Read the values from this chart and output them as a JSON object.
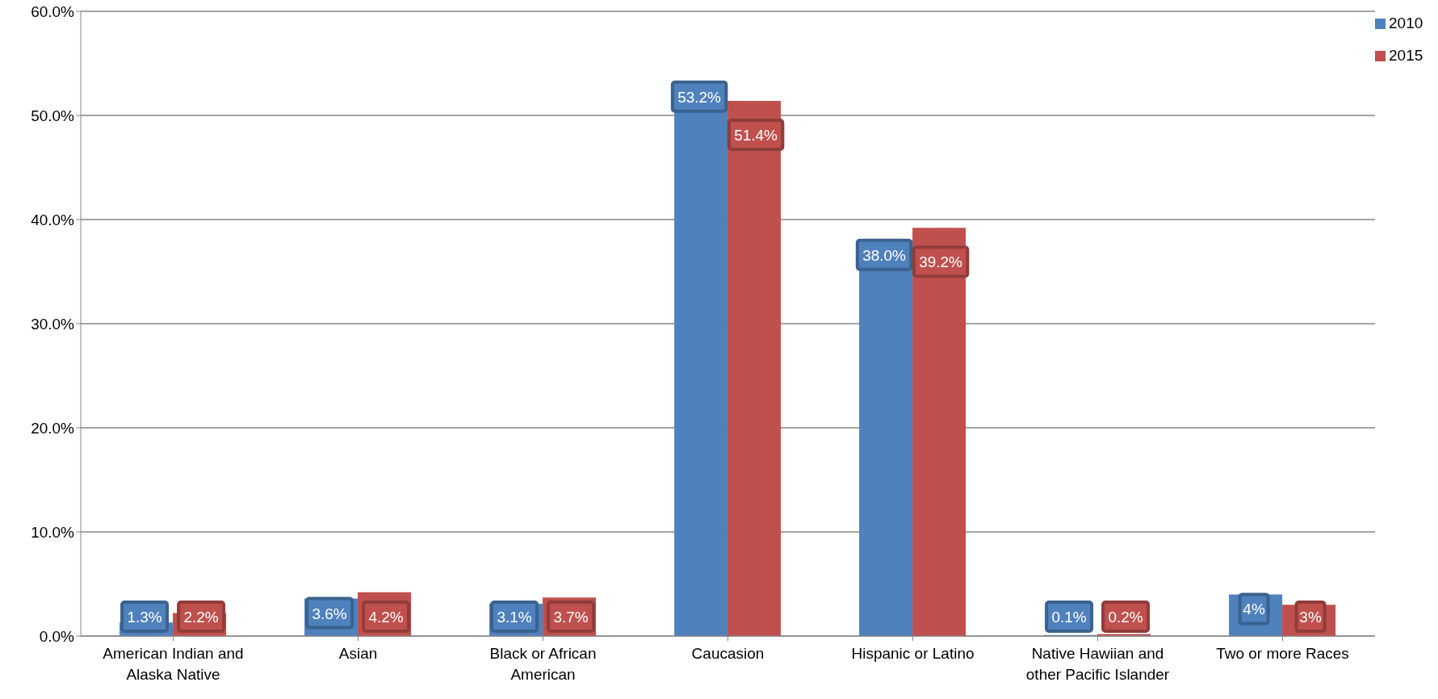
{
  "chart_data": {
    "type": "bar",
    "categories": [
      "American Indian and Alaska Native",
      "Asian",
      "Black or African American",
      "Caucasion",
      "Hispanic or Latino",
      "Native Hawiian and other Pacific Islander",
      "Two or more Races"
    ],
    "series": [
      {
        "name": "2010",
        "color": "#4f81bd",
        "values": [
          1.3,
          3.6,
          3.1,
          53.2,
          38.0,
          0.1,
          4
        ],
        "value_labels": [
          "1.3%",
          "3.6%",
          "3.1%",
          "53.2%",
          "38.0%",
          "0.1%",
          "4%"
        ]
      },
      {
        "name": "2015",
        "color": "#c0504d",
        "values": [
          2.2,
          4.2,
          3.7,
          51.4,
          39.2,
          0.2,
          3
        ],
        "value_labels": [
          "2.2%",
          "4.2%",
          "3.7%",
          "51.4%",
          "39.2%",
          "0.2%",
          "3%"
        ]
      }
    ],
    "ylim": [
      0,
      60
    ],
    "yticks": [
      {
        "value": 0,
        "label": "0.0%"
      },
      {
        "value": 10,
        "label": "10.0%"
      },
      {
        "value": 20,
        "label": "20.0%"
      },
      {
        "value": 30,
        "label": "30.0%"
      },
      {
        "value": 40,
        "label": "40.0%"
      },
      {
        "value": 50,
        "label": "50.0%"
      },
      {
        "value": 60,
        "label": "60.0%"
      }
    ],
    "grid": "y",
    "legend": "top right"
  }
}
